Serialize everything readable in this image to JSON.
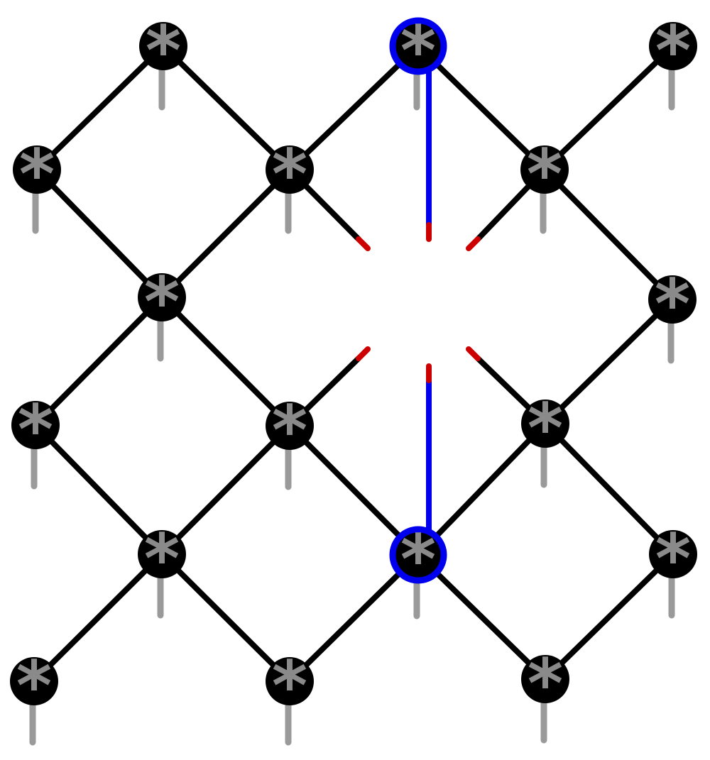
{
  "diagram": {
    "node_symbol": "*",
    "colors": {
      "background": "#ffffff",
      "node_fill": "#000000",
      "node_symbol": "#8a8a8a",
      "stem": "#9a9a9a",
      "edge": "#000000",
      "highlight": "#0000ee",
      "cut_marker": "#cc0000"
    },
    "nodes": [
      {
        "id": "n1",
        "highlighted": false
      },
      {
        "id": "n2",
        "highlighted": true
      },
      {
        "id": "n3",
        "highlighted": false
      },
      {
        "id": "n4",
        "highlighted": false
      },
      {
        "id": "n5",
        "highlighted": false
      },
      {
        "id": "n6",
        "highlighted": false
      },
      {
        "id": "n7",
        "highlighted": false
      },
      {
        "id": "n8",
        "highlighted": false
      },
      {
        "id": "n9",
        "highlighted": false
      },
      {
        "id": "n10",
        "highlighted": false
      },
      {
        "id": "n11",
        "highlighted": false
      },
      {
        "id": "n12",
        "highlighted": true
      },
      {
        "id": "n13",
        "highlighted": false
      },
      {
        "id": "n14",
        "highlighted": false
      },
      {
        "id": "n15",
        "highlighted": false
      },
      {
        "id": "n16",
        "highlighted": false
      },
      {
        "id": "n17",
        "highlighted": false
      },
      {
        "id": "n18",
        "highlighted": false
      }
    ]
  }
}
